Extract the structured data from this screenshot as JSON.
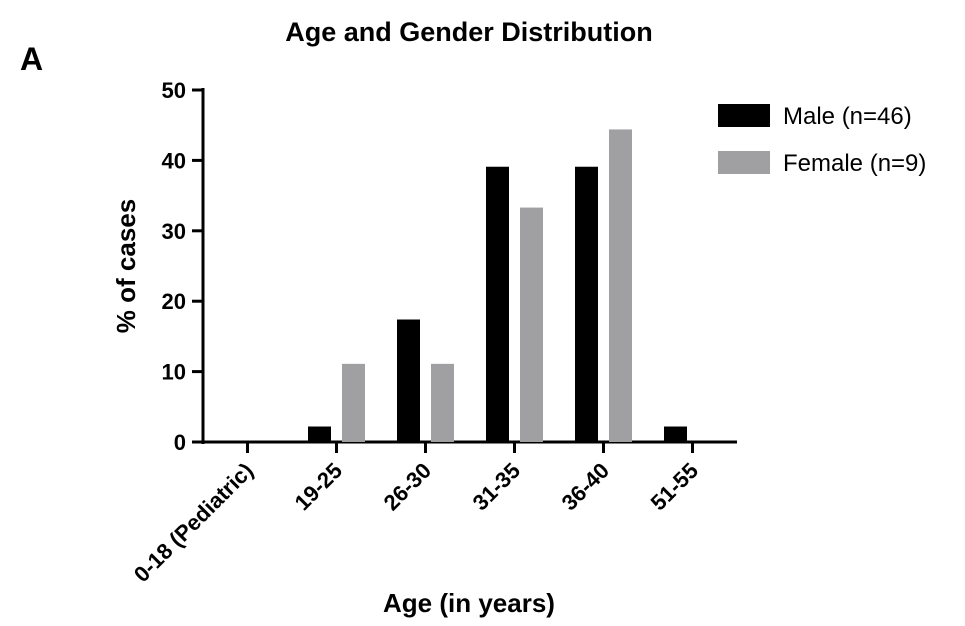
{
  "panel_label": "A",
  "colors": {
    "male": "#000000",
    "female": "#a0a0a3",
    "axis": "#000000"
  },
  "chart_data": {
    "type": "bar",
    "title": "Age and Gender Distribution",
    "xlabel": "Age (in years)",
    "ylabel": "% of cases",
    "ylim": [
      0,
      50
    ],
    "yticks": [
      "0",
      "10",
      "20",
      "30",
      "40",
      "50"
    ],
    "categories": [
      "0-18 (Pediatric)",
      "19-25",
      "26-30",
      "31-35",
      "36-40",
      "51-55"
    ],
    "series": [
      {
        "name": "Male (n=46)",
        "values": [
          0,
          2.2,
          17.4,
          39.1,
          39.1,
          2.2
        ]
      },
      {
        "name": "Female (n=9)",
        "values": [
          0,
          11.1,
          11.1,
          33.3,
          44.4,
          0
        ]
      }
    ],
    "grid": false,
    "legend": "top-right"
  }
}
